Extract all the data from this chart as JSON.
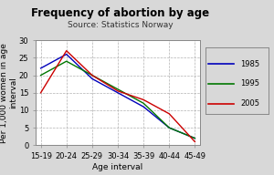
{
  "title": "Frequency of abortion by age",
  "subtitle": "Source: Statistics Norway",
  "xlabel": "Age interval",
  "ylabel": "Per 1,000 women in age\ninterval",
  "categories": [
    "15-19",
    "20-24",
    "25-29",
    "30-34",
    "35-39",
    "40-44",
    "45-49"
  ],
  "series": [
    {
      "label": "1985",
      "color": "#0000bb",
      "values": [
        22,
        26,
        19,
        15,
        11,
        5,
        2
      ]
    },
    {
      "label": "1995",
      "color": "#007700",
      "values": [
        20,
        24,
        20,
        16,
        12,
        5,
        2
      ]
    },
    {
      "label": "2005",
      "color": "#cc0000",
      "values": [
        15,
        27,
        20,
        15.5,
        13,
        9,
        1
      ]
    }
  ],
  "ylim": [
    0,
    30
  ],
  "yticks": [
    0,
    5,
    10,
    15,
    20,
    25,
    30
  ],
  "fig_bg_color": "#d8d8d8",
  "plot_bg_color": "#ffffff",
  "grid_color": "#aaaaaa",
  "title_fontsize": 8.5,
  "subtitle_fontsize": 6.5,
  "axis_label_fontsize": 6.5,
  "tick_fontsize": 6,
  "legend_fontsize": 6
}
